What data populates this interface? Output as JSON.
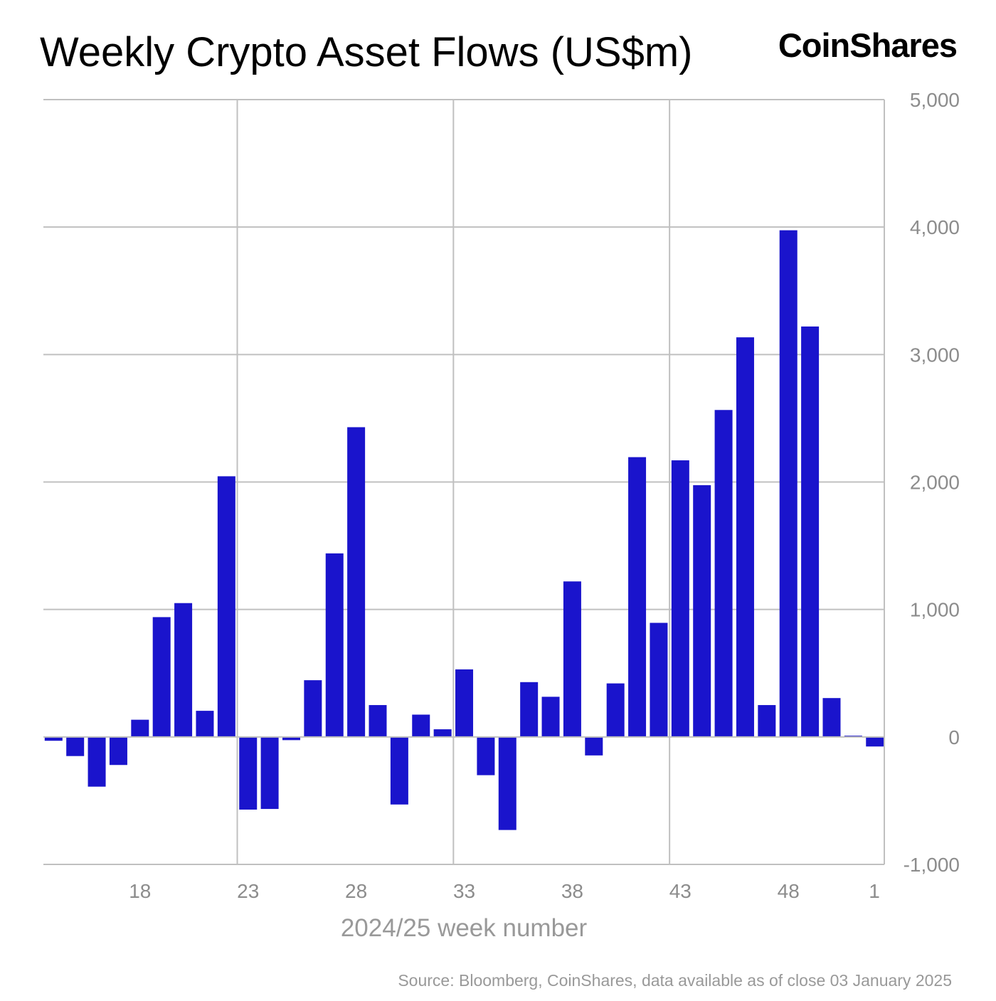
{
  "title": "Weekly Crypto Asset Flows (US$m)",
  "brand": "CoinShares",
  "source": "Source: Bloomberg, CoinShares, data available as of close 03 January 2025",
  "colors": {
    "bar": "#1a14cc",
    "grid": "#c0c0c0",
    "tick": "#8c8c8c"
  },
  "chart_data": {
    "type": "bar",
    "title": "Weekly Crypto Asset Flows (US$m)",
    "xlabel": "2024/25 week number",
    "ylabel": "",
    "ylim": [
      -1000,
      5000
    ],
    "yticks": [
      -1000,
      0,
      1000,
      2000,
      3000,
      4000,
      5000
    ],
    "ytick_labels": [
      "-1,000",
      "0",
      "1,000",
      "2,000",
      "3,000",
      "4,000",
      "5,000"
    ],
    "xtick_labels": [
      "18",
      "23",
      "28",
      "33",
      "38",
      "43",
      "48",
      "1"
    ],
    "xtick_categories": [
      "18",
      "23",
      "28",
      "33",
      "38",
      "43",
      "48",
      "1"
    ],
    "x_gridlines_at": [
      "23",
      "33",
      "43"
    ],
    "grid": true,
    "legend": "none",
    "y_axis_position": "right",
    "categories": [
      "14",
      "15",
      "16",
      "17",
      "18",
      "19",
      "20",
      "21",
      "22",
      "23",
      "24",
      "25",
      "26",
      "27",
      "28",
      "29",
      "30",
      "31",
      "32",
      "33",
      "34",
      "35",
      "36",
      "37",
      "38",
      "39",
      "40",
      "41",
      "42",
      "43",
      "44",
      "45",
      "46",
      "47",
      "48",
      "49",
      "50",
      "51",
      "52",
      "1"
    ],
    "values": [
      -30,
      -150,
      -390,
      -220,
      135,
      940,
      1050,
      205,
      2045,
      -570,
      -565,
      -25,
      445,
      1440,
      2430,
      250,
      -530,
      175,
      60,
      530,
      -300,
      -730,
      430,
      315,
      1220,
      -145,
      420,
      2195,
      895,
      2170,
      1975,
      2565,
      3135,
      250,
      3975,
      3220,
      305,
      10,
      -75,
      0
    ]
  }
}
